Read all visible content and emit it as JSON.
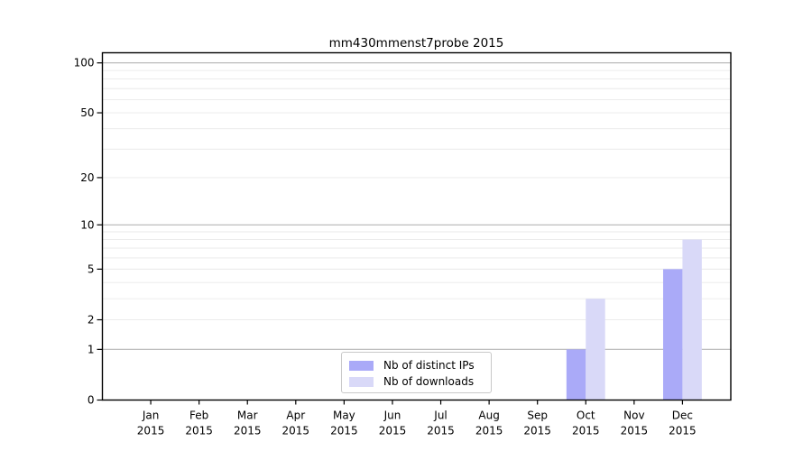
{
  "chart_data": {
    "type": "bar",
    "title": "mm430mmenst7probe 2015",
    "year": "2015",
    "months": [
      "Jan",
      "Feb",
      "Mar",
      "Apr",
      "May",
      "Jun",
      "Jul",
      "Aug",
      "Sep",
      "Oct",
      "Nov",
      "Dec"
    ],
    "series": [
      {
        "name": "Nb of distinct IPs",
        "color": "#aaaaf8",
        "values": [
          0,
          0,
          0,
          0,
          0,
          0,
          0,
          0,
          0,
          1,
          0,
          5
        ]
      },
      {
        "name": "Nb of downloads",
        "color": "#d9d9f8",
        "values": [
          0,
          0,
          0,
          0,
          0,
          0,
          0,
          0,
          0,
          3,
          0,
          8
        ]
      }
    ],
    "y_scale": "log1p",
    "ylim": [
      0,
      115
    ],
    "y_ticks": [
      0,
      1,
      2,
      5,
      10,
      20,
      50,
      100
    ],
    "y_tick_labels": [
      "0",
      "1",
      "2",
      "5",
      "10",
      "20",
      "50",
      "100"
    ],
    "y_major_gridlines": [
      1,
      10,
      100
    ],
    "y_minor_gridlines": [
      2,
      3,
      4,
      5,
      6,
      7,
      8,
      9,
      20,
      30,
      40,
      50,
      60,
      70,
      80,
      90
    ],
    "legend_position": "lower center",
    "colors": {
      "major_grid": "#b4b4b4",
      "minor_grid": "#e9e9e9",
      "spine": "#000000",
      "text": "#000000",
      "background": "#ffffff"
    }
  }
}
